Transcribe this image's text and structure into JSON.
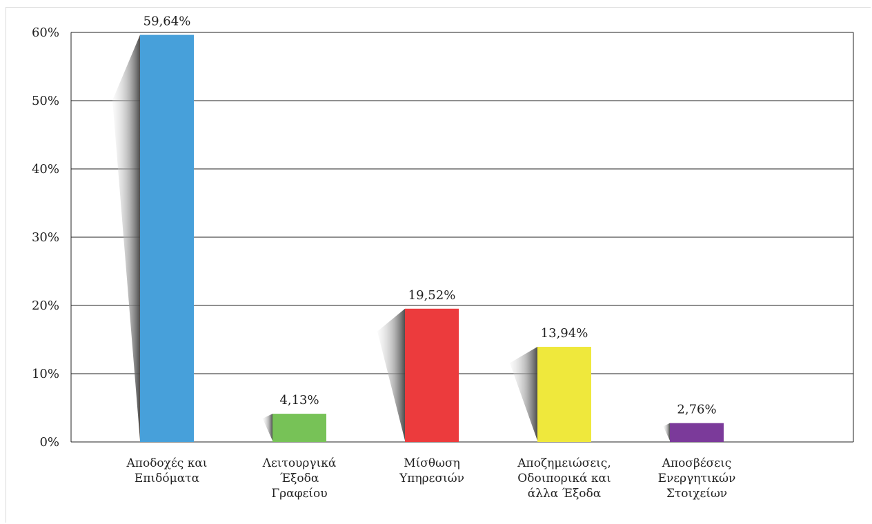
{
  "chart_data": {
    "type": "bar",
    "title": "",
    "xlabel": "",
    "ylabel": "",
    "ylim": [
      0,
      60
    ],
    "yticks": [
      0,
      10,
      20,
      30,
      40,
      50,
      60
    ],
    "ytick_labels": [
      "0%",
      "10%",
      "20%",
      "30%",
      "40%",
      "50%",
      "60%"
    ],
    "grid": true,
    "legend": "none",
    "categories": [
      [
        "Αποδοχές και",
        "Επιδόματα"
      ],
      [
        "Λειτουργικά",
        "Έξοδα",
        "Γραφείου"
      ],
      [
        "Μίσθωση",
        "Υπηρεσιών"
      ],
      [
        "Αποζημειώσεις,",
        "Οδοιπορικά και",
        "άλλα Έξοδα"
      ],
      [
        "Αποσβέσεις",
        "Ενεργητικών",
        "Στοιχείων"
      ]
    ],
    "values": [
      59.64,
      4.13,
      19.52,
      13.94,
      2.76
    ],
    "value_labels": [
      "59,64%",
      "4,13%",
      "19,52%",
      "13,94%",
      "2,76%"
    ],
    "colors": [
      "#47a0da",
      "#77c257",
      "#ec3b3d",
      "#efe83c",
      "#7b3a9a"
    ]
  }
}
